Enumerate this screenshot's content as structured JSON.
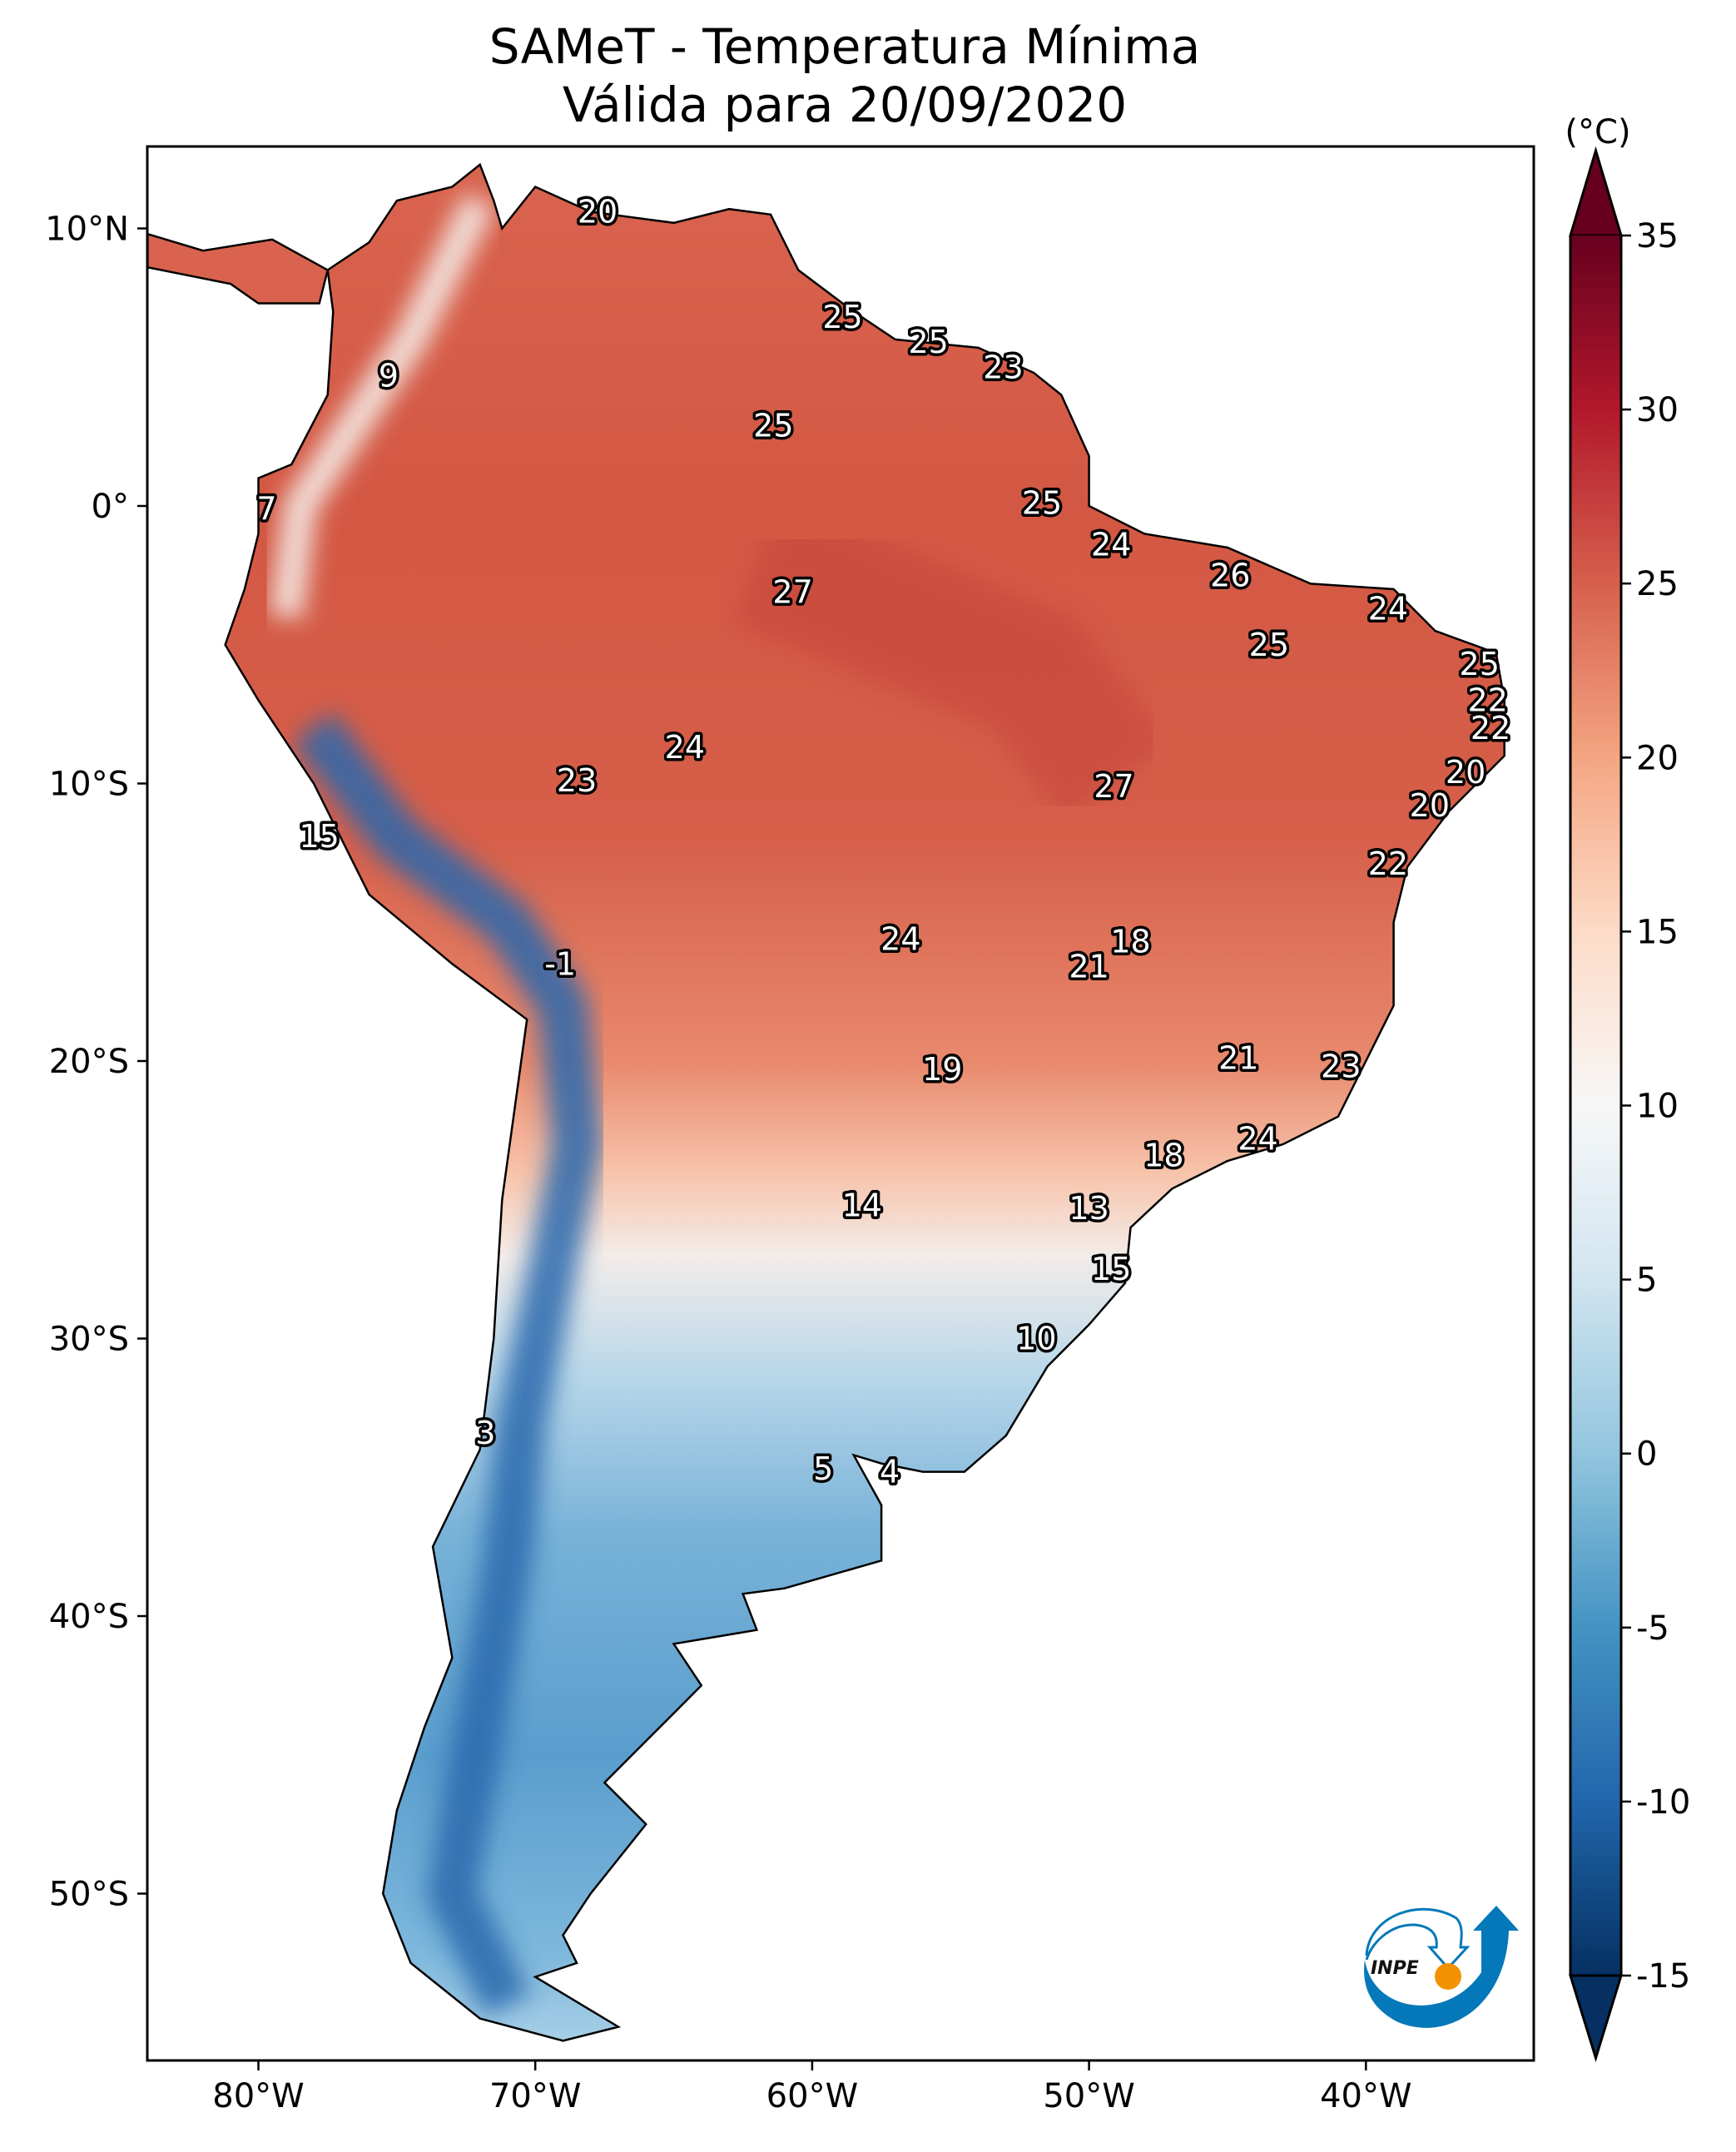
{
  "title": "SAMeT - Temperatura Mínima",
  "subtitle": "Válida para 20/09/2020",
  "colorbar": {
    "unit_label": "(°C)",
    "range": [
      -15,
      35
    ],
    "ticks": [
      "35",
      "30",
      "25",
      "20",
      "15",
      "10",
      "5",
      "0",
      "-5",
      "-10",
      "-15"
    ],
    "colors": {
      "-15": "#053061",
      "-10": "#2166ac",
      "-5": "#4393c3",
      "0": "#92c5de",
      "5": "#d1e5f0",
      "10": "#f7f7f7",
      "15": "#fddbc7",
      "20": "#f4a582",
      "25": "#d6604d",
      "30": "#b2182b",
      "35": "#67001f"
    }
  },
  "axes": {
    "lon_range": [
      -84,
      -34
    ],
    "lat_range": [
      -56,
      13
    ],
    "lon_ticks": [
      {
        "value": -80,
        "label": "80°W"
      },
      {
        "value": -70,
        "label": "70°W"
      },
      {
        "value": -60,
        "label": "60°W"
      },
      {
        "value": -50,
        "label": "50°W"
      },
      {
        "value": -40,
        "label": "40°W"
      }
    ],
    "lat_ticks": [
      {
        "value": 10,
        "label": "10°N"
      },
      {
        "value": 0,
        "label": "0°"
      },
      {
        "value": -10,
        "label": "10°S"
      },
      {
        "value": -20,
        "label": "20°S"
      },
      {
        "value": -30,
        "label": "30°S"
      },
      {
        "value": -40,
        "label": "40°S"
      },
      {
        "value": -50,
        "label": "50°S"
      }
    ]
  },
  "map": {
    "labels": [
      {
        "text": "20",
        "lon": -67.75,
        "lat": 10.6
      },
      {
        "text": "25",
        "lon": -58.9,
        "lat": 6.8
      },
      {
        "text": "25",
        "lon": -55.8,
        "lat": 5.9
      },
      {
        "text": "23",
        "lon": -53.1,
        "lat": 5.0
      },
      {
        "text": "9",
        "lon": -75.3,
        "lat": 4.7
      },
      {
        "text": "25",
        "lon": -61.4,
        "lat": 2.9
      },
      {
        "text": "7",
        "lon": -79.7,
        "lat": -0.1
      },
      {
        "text": "25",
        "lon": -51.7,
        "lat": 0.1
      },
      {
        "text": "24",
        "lon": -49.2,
        "lat": -1.4
      },
      {
        "text": "26",
        "lon": -44.9,
        "lat": -2.5
      },
      {
        "text": "27",
        "lon": -60.7,
        "lat": -3.1
      },
      {
        "text": "24",
        "lon": -39.2,
        "lat": -3.7
      },
      {
        "text": "25",
        "lon": -43.5,
        "lat": -5.0
      },
      {
        "text": "25",
        "lon": -35.9,
        "lat": -5.7
      },
      {
        "text": "22",
        "lon": -35.6,
        "lat": -7.0
      },
      {
        "text": "22",
        "lon": -35.5,
        "lat": -8.0
      },
      {
        "text": "24",
        "lon": -64.6,
        "lat": -8.7
      },
      {
        "text": "20",
        "lon": -36.4,
        "lat": -9.6
      },
      {
        "text": "23",
        "lon": -68.5,
        "lat": -9.9
      },
      {
        "text": "27",
        "lon": -49.1,
        "lat": -10.1
      },
      {
        "text": "20",
        "lon": -37.7,
        "lat": -10.8
      },
      {
        "text": "15",
        "lon": -77.8,
        "lat": -11.9
      },
      {
        "text": "22",
        "lon": -39.2,
        "lat": -12.9
      },
      {
        "text": "24",
        "lon": -56.8,
        "lat": -15.6
      },
      {
        "text": "18",
        "lon": -48.5,
        "lat": -15.7
      },
      {
        "text": "-1",
        "lon": -69.1,
        "lat": -16.5
      },
      {
        "text": "21",
        "lon": -50.0,
        "lat": -16.6
      },
      {
        "text": "21",
        "lon": -44.6,
        "lat": -19.9
      },
      {
        "text": "23",
        "lon": -40.9,
        "lat": -20.2
      },
      {
        "text": "19",
        "lon": -55.3,
        "lat": -20.3
      },
      {
        "text": "24",
        "lon": -43.9,
        "lat": -22.8
      },
      {
        "text": "18",
        "lon": -47.3,
        "lat": -23.4
      },
      {
        "text": "14",
        "lon": -58.2,
        "lat": -25.2
      },
      {
        "text": "13",
        "lon": -50.0,
        "lat": -25.3
      },
      {
        "text": "15",
        "lon": -49.2,
        "lat": -27.5
      },
      {
        "text": "10",
        "lon": -51.9,
        "lat": -30.0
      },
      {
        "text": "3",
        "lon": -71.8,
        "lat": -33.4
      },
      {
        "text": "5",
        "lon": -59.6,
        "lat": -34.7
      },
      {
        "text": "4",
        "lon": -57.2,
        "lat": -34.8
      }
    ]
  },
  "logo": {
    "text": "INPE",
    "orange": "#f39200",
    "blue": "#0478b9"
  }
}
